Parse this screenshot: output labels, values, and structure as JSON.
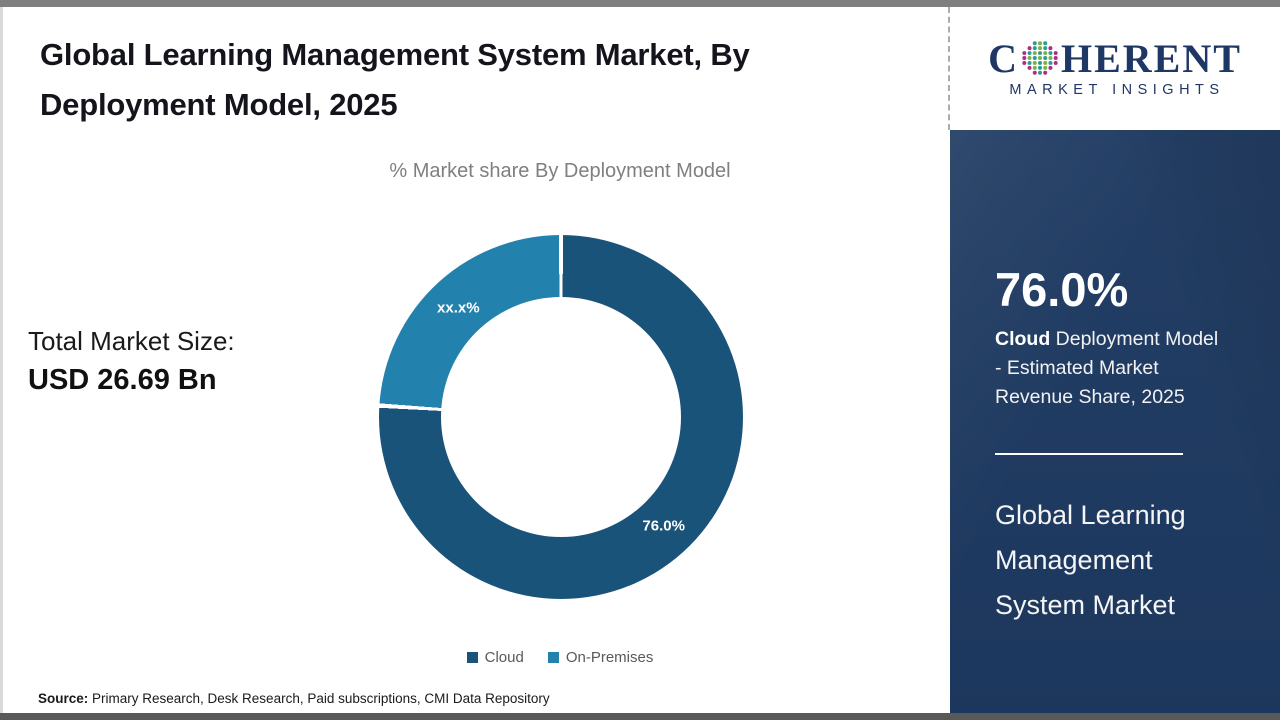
{
  "header": {
    "title_line1": "Global Learning Management System Market, By",
    "title_line2": "Deployment Model, 2025"
  },
  "left_stat": {
    "label": "Total Market Size:",
    "value": "USD 26.69 Bn"
  },
  "chart_data": {
    "type": "pie",
    "donut": true,
    "title": "% Market share By Deployment Model",
    "unit": "%",
    "start_angle_deg": 0,
    "legend_position": "bottom",
    "slice_label_color": "#ffffff",
    "series": [
      {
        "name": "Cloud",
        "value": 76.0,
        "label": "76.0%",
        "color": "#1a537a"
      },
      {
        "name": "On-Premises",
        "value": 24.0,
        "label": "xx.x%",
        "color": "#2381ad"
      }
    ]
  },
  "source": {
    "label": "Source:",
    "text": " Primary Research, Desk Research, Paid subscriptions, CMI Data Repository"
  },
  "sidebar": {
    "logo": {
      "brand_c": "C",
      "brand_rest": "HERENT",
      "tagline": "MARKET INSIGHTS"
    },
    "stat": {
      "value": "76.0%",
      "desc_bold": "Cloud",
      "desc_line1_rest": " Deployment Model",
      "desc_line2": "- Estimated Market",
      "desc_line3": "Revenue Share, 2025"
    },
    "panel_title_lines": [
      "Global Learning",
      "Management",
      "System Market"
    ],
    "colors": {
      "panel_bg": "#1e3a62",
      "logo_navy": "#1f3765"
    }
  }
}
